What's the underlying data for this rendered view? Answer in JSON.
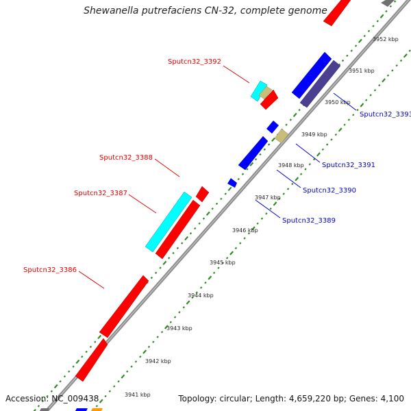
{
  "title": "Shewanella putrefaciens CN-32, complete genome",
  "footer": {
    "accession": "Accession: NC_009438",
    "summary": "Topology: circular; Length: 4,659,220 bp; Genes: 4,100"
  },
  "colors": {
    "background": "#ffffff",
    "backbone": "#888888",
    "tick_ring": "#2e8b22",
    "forward_label": "#e00000",
    "reverse_label": "#0000cc",
    "feature_red": "#ff0000",
    "feature_blue": "#0000ff",
    "feature_navy": "#4a3f91",
    "feature_cyan": "#00ffff",
    "feature_khaki": "#c8be7a",
    "feature_gray": "#707070",
    "feature_orange": "#ff9900"
  },
  "tick_labels": [
    "3941 kbp",
    "3942 kbp",
    "3943 kbp",
    "3944 kbp",
    "3945 kbp",
    "3946 kbp",
    "3947 kbp",
    "3948 kbp",
    "3949 kbp",
    "3950 kbp",
    "3951 kbp",
    "3952 kbp"
  ],
  "gene_labels": {
    "forward": [
      "Sputcn32_3392",
      "Sputcn32_3388",
      "Sputcn32_3387",
      "Sputcn32_3386"
    ],
    "reverse": [
      "Sputcn32_3393",
      "Sputcn32_3391",
      "Sputcn32_3390",
      "Sputcn32_3389"
    ]
  }
}
